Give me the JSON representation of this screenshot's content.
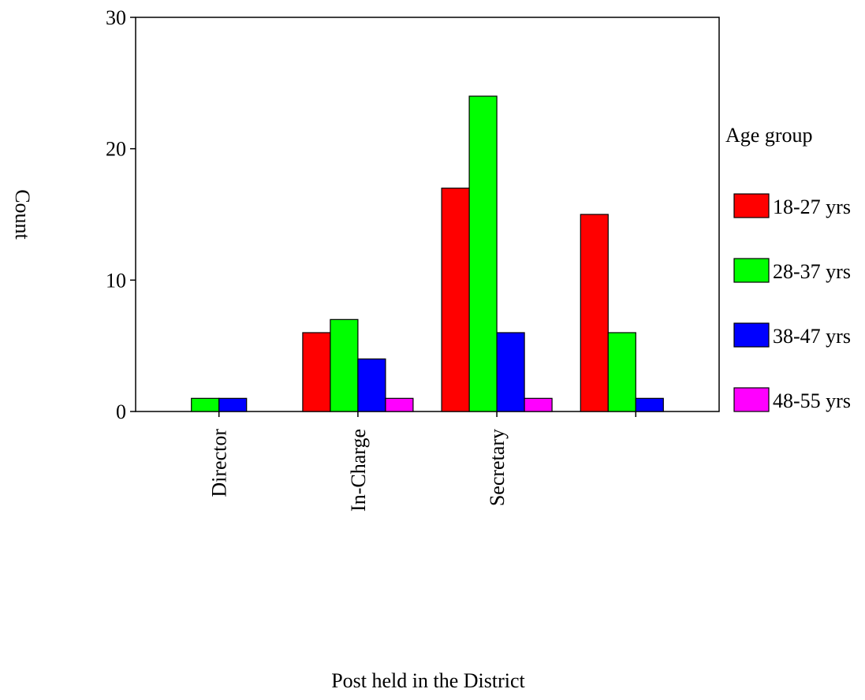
{
  "chart_data": {
    "type": "bar",
    "categories": [
      "Director",
      "In-Charge",
      "Secretary",
      ""
    ],
    "series": [
      {
        "name": "18-27 yrs",
        "color": "#ff0000",
        "values": [
          0,
          6,
          17,
          15
        ]
      },
      {
        "name": "28-37 yrs",
        "color": "#00ff00",
        "values": [
          1,
          7,
          24,
          6
        ]
      },
      {
        "name": "38-47 yrs",
        "color": "#0000ff",
        "values": [
          1,
          4,
          6,
          1
        ]
      },
      {
        "name": "48-55 yrs",
        "color": "#ff00ff",
        "values": [
          0,
          1,
          1,
          0
        ]
      }
    ],
    "xlabel": "Post held in the District",
    "ylabel": "Count",
    "ylim": [
      0,
      30
    ],
    "yticks": [
      0,
      10,
      20,
      30
    ],
    "legend_title": "Age group",
    "legend_position": "right",
    "grid": false
  }
}
